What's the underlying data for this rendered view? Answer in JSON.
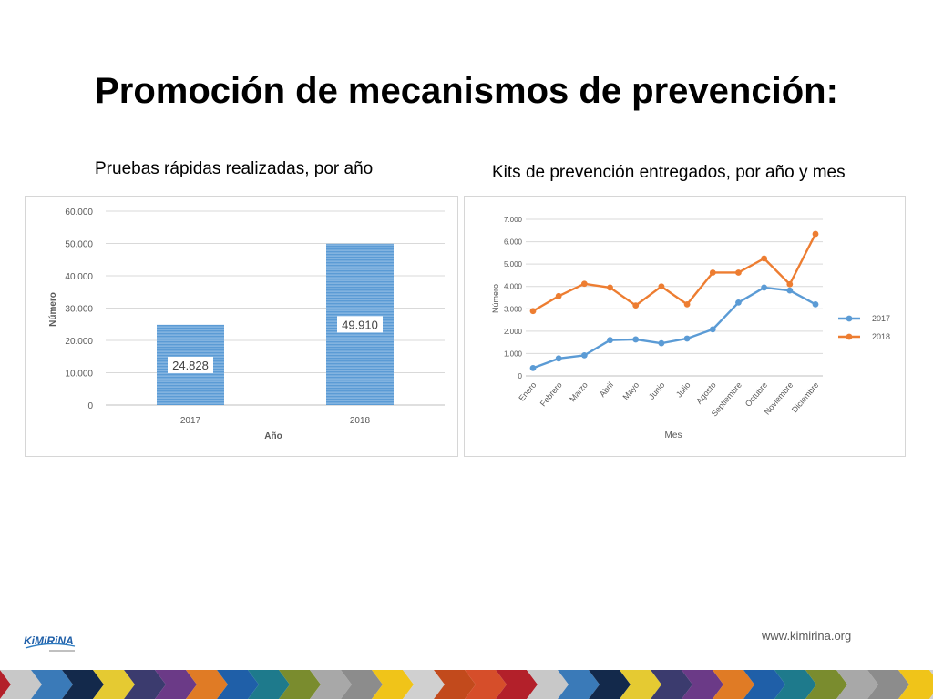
{
  "slide": {
    "title": "Promoción de mecanismos de prevención:",
    "website": "www.kimirina.org",
    "logo_text": "KiMiRiNA",
    "band_colors": [
      "#b3202a",
      "#6b3a87",
      "#8c8c8c",
      "#c8c8c8",
      "#e07b25",
      "#f0c419",
      "#3a7ab8",
      "#1f5fa8",
      "#d0d0d0",
      "#13294b",
      "#1e7a8c",
      "#c24a1c",
      "#e5ca32",
      "#7a8c2e",
      "#d64e2a",
      "#3b3b6e",
      "#a8a8a8"
    ]
  },
  "chart_data": [
    {
      "type": "bar",
      "title": "Pruebas rápidas realizadas, por año",
      "xlabel": "Año",
      "ylabel": "Número",
      "categories": [
        "2017",
        "2018"
      ],
      "values": [
        24828,
        49910
      ],
      "value_labels": [
        "24.828",
        "49.910"
      ],
      "ylim": [
        0,
        60000
      ],
      "yticks": [
        0,
        10000,
        20000,
        30000,
        40000,
        50000,
        60000
      ],
      "ytick_labels": [
        "0",
        "10.000",
        "20.000",
        "30.000",
        "40.000",
        "50.000",
        "60.000"
      ],
      "grid": true,
      "bar_color": "#5b9bd5"
    },
    {
      "type": "line",
      "title": "Kits de prevención entregados, por año y mes",
      "xlabel": "Mes",
      "ylabel": "Número",
      "categories": [
        "Enero",
        "Febrero",
        "Marzo",
        "Abril",
        "Mayo",
        "Junio",
        "Julio",
        "Agosto",
        "Septiembre",
        "Octubre",
        "Noviembre",
        "Diciembre"
      ],
      "series": [
        {
          "name": "2017",
          "color": "#5b9bd5",
          "values": [
            350,
            780,
            920,
            1600,
            1630,
            1460,
            1670,
            2080,
            3280,
            3950,
            3820,
            3200
          ]
        },
        {
          "name": "2018",
          "color": "#ed7d31",
          "values": [
            2900,
            3570,
            4120,
            3950,
            3150,
            4000,
            3200,
            4620,
            4620,
            5250,
            4100,
            6350
          ]
        }
      ],
      "ylim": [
        0,
        7000
      ],
      "yticks": [
        0,
        1000,
        2000,
        3000,
        4000,
        5000,
        6000,
        7000
      ],
      "ytick_labels": [
        "0",
        "1.000",
        "2.000",
        "3.000",
        "4.000",
        "5.000",
        "6.000",
        "7.000"
      ],
      "grid": true,
      "legend": "right"
    }
  ]
}
